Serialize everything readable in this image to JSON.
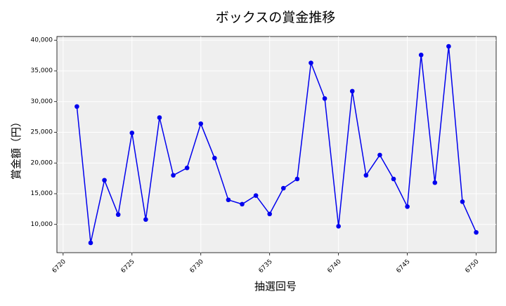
{
  "chart_data": {
    "type": "line",
    "title": "ボックスの賞金推移",
    "xlabel": "抽選回号",
    "ylabel": "賞金額（円）",
    "x": [
      6721,
      6722,
      6723,
      6724,
      6725,
      6726,
      6727,
      6728,
      6729,
      6730,
      6731,
      6732,
      6733,
      6734,
      6735,
      6736,
      6737,
      6738,
      6739,
      6740,
      6741,
      6742,
      6743,
      6744,
      6745,
      6746,
      6747,
      6748,
      6749,
      6750
    ],
    "series": [
      {
        "values": [
          29200,
          7000,
          17200,
          11600,
          24900,
          10800,
          27400,
          18000,
          19200,
          26400,
          20800,
          14000,
          13300,
          14700,
          11700,
          15900,
          17400,
          36300,
          30500,
          9700,
          31700,
          18000,
          21300,
          17400,
          12900,
          37600,
          16800,
          39000,
          13700,
          8700
        ]
      }
    ],
    "xlim": [
      6719.55,
      6751.45
    ],
    "ylim": [
      5400,
      40600
    ],
    "xticks": [
      6720,
      6725,
      6730,
      6735,
      6740,
      6745,
      6750
    ],
    "yticks": [
      10000,
      15000,
      20000,
      25000,
      30000,
      35000,
      40000
    ],
    "ytick_labels": [
      "10,000",
      "15,000",
      "20,000",
      "25,000",
      "30,000",
      "35,000",
      "40,000"
    ],
    "grid": true,
    "colors": {
      "line": "#0000ee",
      "marker": "#0000ee",
      "plot_bg": "#efefef",
      "grid": "#ffffff"
    }
  }
}
